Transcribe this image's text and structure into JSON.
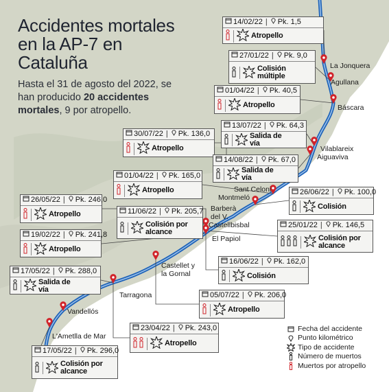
{
  "title": "Accidentes mortales en la AP-7 en Cataluña",
  "subtitle": {
    "before": "Hasta el 31 de agosto del 2022, se han producido ",
    "bold": "20 accidentes mortales",
    "after": ", 9 por atropello."
  },
  "colors": {
    "sea": "#ffffff",
    "land": "#d3d6c7",
    "highway": "#1f63b8",
    "marker": "#d1232a",
    "card_bg": "#f4f4f2"
  },
  "places": {
    "la_jonquera": "La Jonquera",
    "agullana": "Agullana",
    "bascara": "Báscara",
    "vilablareix": "Vilablareix",
    "aiguaviva": "Aiguaviva",
    "sant_celoni": "Sant Celoni",
    "montmelo": "Montmeló",
    "barbera": "Barberà del V.",
    "castellbisbal": "Castellbisbal",
    "el_papiol": "El Papiol",
    "castellet": "Castellet y la Gornal",
    "tarragona": "Tarragona",
    "vandellos": "Vandellós",
    "ametlla": "L'Ametlla de Mar"
  },
  "accidents": [
    {
      "date": "14/02/22",
      "pk": "Pk. 1,5",
      "deaths": 1,
      "pedestrian": true,
      "type": "Atropello"
    },
    {
      "date": "27/01/22",
      "pk": "Pk. 9,0",
      "deaths": 1,
      "pedestrian": false,
      "type": "Colisión múltiple"
    },
    {
      "date": "01/04/22",
      "pk": "Pk. 40,5",
      "deaths": 1,
      "pedestrian": true,
      "type": "Atropello"
    },
    {
      "date": "13/07/22",
      "pk": "Pk. 64,3",
      "deaths": 1,
      "pedestrian": false,
      "type": "Salida de vía"
    },
    {
      "date": "30/07/22",
      "pk": "Pk. 136,0",
      "deaths": 1,
      "pedestrian": true,
      "type": "Atropello"
    },
    {
      "date": "14/08/22",
      "pk": "Pk. 67,0",
      "deaths": 1,
      "pedestrian": false,
      "type": "Salida de vía"
    },
    {
      "date": "01/04/22",
      "pk": "Pk. 165,0",
      "deaths": 1,
      "pedestrian": true,
      "type": "Atropello"
    },
    {
      "date": "26/06/22",
      "pk": "Pk. 100,0",
      "deaths": 1,
      "pedestrian": false,
      "type": "Colisión"
    },
    {
      "date": "26/05/22",
      "pk": "Pk. 246,0",
      "deaths": 1,
      "pedestrian": true,
      "type": "Atropello"
    },
    {
      "date": "11/06/22",
      "pk": "Pk. 205,7",
      "deaths": 1,
      "pedestrian": false,
      "type": "Colisión por alcance"
    },
    {
      "date": "25/01/22",
      "pk": "Pk. 146,5",
      "deaths": 3,
      "pedestrian": false,
      "type": "Colisión por alcance"
    },
    {
      "date": "19/02/22",
      "pk": "Pk. 241,8",
      "deaths": 1,
      "pedestrian": true,
      "type": "Atropello"
    },
    {
      "date": "16/06/22",
      "pk": "Pk. 162,0",
      "deaths": 1,
      "pedestrian": false,
      "type": "Colisión"
    },
    {
      "date": "17/05/22",
      "pk": "Pk. 288,0",
      "deaths": 1,
      "pedestrian": false,
      "type": "Salida de vía"
    },
    {
      "date": "05/07/22",
      "pk": "Pk. 206,0",
      "deaths": 1,
      "pedestrian": true,
      "type": "Atropello"
    },
    {
      "date": "23/04/22",
      "pk": "Pk. 243,0",
      "deaths": 2,
      "pedestrian": true,
      "type": "Atropello"
    },
    {
      "date": "17/05/22",
      "pk": "Pk. 296,0",
      "deaths": 1,
      "pedestrian": false,
      "type": "Colisión por alcance"
    }
  ],
  "legend": {
    "date": "Fecha del accidente",
    "pk": "Punto kilométrico",
    "type": "Tipo de accidente",
    "deaths": "Número de muertos",
    "pedestrian": "Muertos por atropello"
  }
}
